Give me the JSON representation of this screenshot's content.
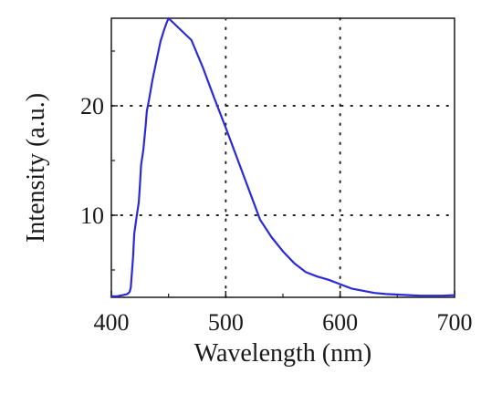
{
  "chart_data": {
    "type": "line",
    "title": "",
    "xlabel": "Wavelength (nm)",
    "ylabel": "Intensity (a.u.)",
    "xlim": [
      400,
      700
    ],
    "ylim": [
      2.5,
      28
    ],
    "xticks": [
      400,
      500,
      600,
      700
    ],
    "yticks": [
      10,
      20
    ],
    "x_tick_labels": [
      "400",
      "500",
      "600",
      "700"
    ],
    "y_tick_labels": [
      "10",
      "20"
    ],
    "grid": "dotted",
    "line_color": "#2a2ad8",
    "series": [
      {
        "x": [
          400,
          405,
          410,
          414,
          416,
          417,
          418,
          419,
          420,
          422,
          424,
          425,
          426,
          428,
          430,
          431,
          433,
          436,
          440,
          443,
          446,
          448,
          450,
          460,
          470,
          480,
          490,
          500,
          510,
          520,
          530,
          540,
          550,
          560,
          570,
          580,
          590,
          600,
          610,
          620,
          630,
          640,
          650,
          660,
          670,
          680,
          690,
          700
        ],
        "y": [
          2.6,
          2.6,
          2.7,
          2.8,
          3.0,
          3.4,
          4.8,
          6.2,
          8.3,
          9.8,
          11.2,
          12.8,
          14.6,
          16.0,
          18.2,
          19.5,
          20.6,
          22.4,
          24.4,
          25.9,
          26.9,
          27.5,
          28.0,
          27.0,
          26.0,
          23.5,
          20.7,
          18.0,
          15.2,
          12.4,
          9.6,
          8.0,
          6.7,
          5.6,
          4.8,
          4.4,
          4.1,
          3.7,
          3.3,
          3.1,
          2.9,
          2.8,
          2.75,
          2.7,
          2.65,
          2.65,
          2.65,
          2.7
        ]
      }
    ]
  }
}
